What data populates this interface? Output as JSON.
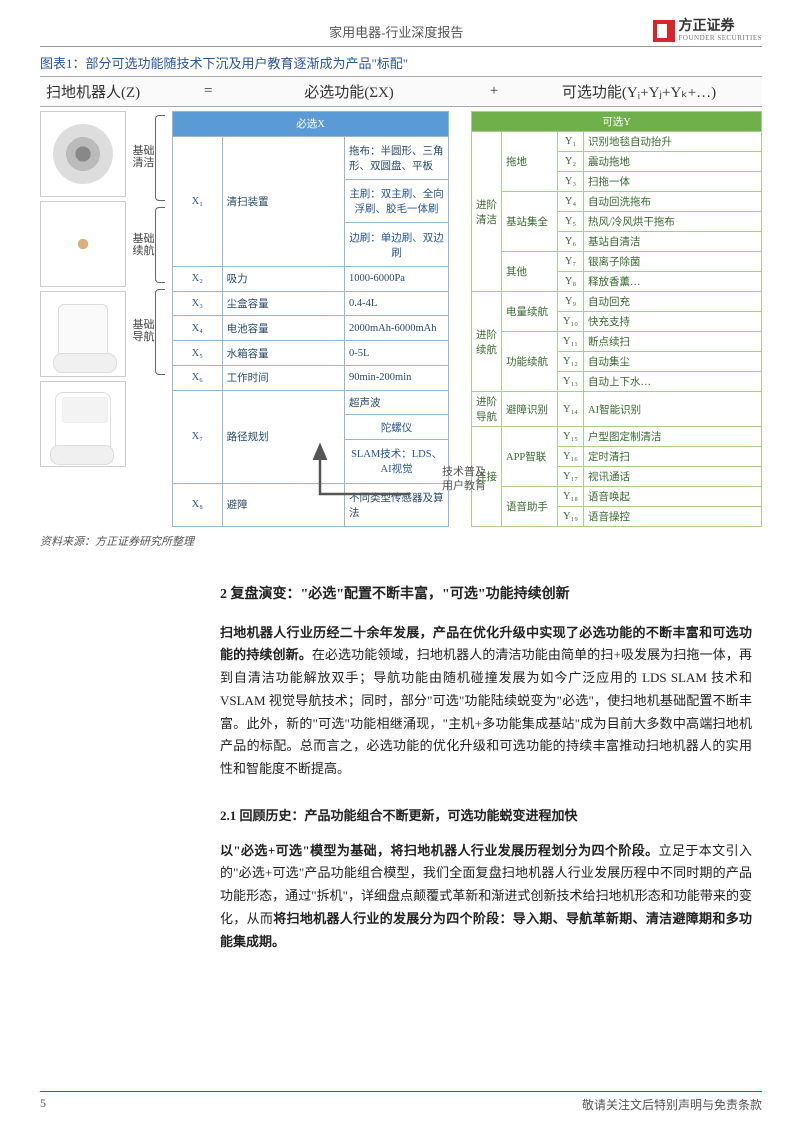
{
  "header": {
    "title": "家用电器-行业深度报告",
    "logo_text": "方正证券",
    "logo_sub": "FOUNDER SECURITIES",
    "logo_color": "#d8252c"
  },
  "figure": {
    "caption": "图表1：部分可选功能随技术下沉及用户教育逐渐成为产品\"标配\"",
    "formula": {
      "lhs": "扫地机器人(Z)",
      "eq": "=",
      "mid": "必选功能(ΣX)",
      "plus": "+",
      "rhs_prefix": "可选功能(Y",
      "rhs_full": "可选功能(Yᵢ+Yⱼ+Yₖ+…)"
    },
    "braces": [
      {
        "label": "基础\n清洁"
      },
      {
        "label": "基础\n续航"
      },
      {
        "label": "基础\n导航"
      }
    ],
    "blue": {
      "header": "必选X",
      "rows": [
        {
          "code": "X₁",
          "name": "清扫装置",
          "detail": "拖布：半圆形、三角形、双圆盘、平板"
        },
        {
          "code": "",
          "name": "",
          "detail": "主刷：双主刷、全向浮刷、胶毛一体刷"
        },
        {
          "code": "",
          "name": "",
          "detail": "边刷：单边刷、双边刷"
        },
        {
          "code": "X₂",
          "name": "吸力",
          "detail": "1000-6000Pa"
        },
        {
          "code": "X₃",
          "name": "尘盒容量",
          "detail": "0.4-4L"
        },
        {
          "code": "X₄",
          "name": "电池容量",
          "detail": "2000mAh-6000mAh"
        },
        {
          "code": "X₅",
          "name": "水箱容量",
          "detail": "0-5L"
        },
        {
          "code": "X₆",
          "name": "工作时间",
          "detail": "90min-200min"
        },
        {
          "code": "X₇",
          "name": "路径规划",
          "detail": "超声波"
        },
        {
          "code": "",
          "name": "",
          "detail": "陀螺仪"
        },
        {
          "code": "",
          "name": "",
          "detail": "SLAM技术：LDS、AI视觉"
        },
        {
          "code": "X₈",
          "name": "避障",
          "detail": "不同类型传感器及算法"
        }
      ]
    },
    "green": {
      "header": "可选Y",
      "rows": [
        {
          "g1": "进阶\n清洁",
          "g2": "拖地",
          "code": "Y₁",
          "detail": "识别地毯自动抬升"
        },
        {
          "g1": "",
          "g2": "",
          "code": "Y₂",
          "detail": "震动拖地"
        },
        {
          "g1": "",
          "g2": "",
          "code": "Y₃",
          "detail": "扫拖一体"
        },
        {
          "g1": "",
          "g2": "基站集全",
          "code": "Y₄",
          "detail": "自动回洗拖布"
        },
        {
          "g1": "",
          "g2": "",
          "code": "Y₅",
          "detail": "热风/冷风烘干拖布"
        },
        {
          "g1": "",
          "g2": "",
          "code": "Y₆",
          "detail": "基站自清洁"
        },
        {
          "g1": "",
          "g2": "其他",
          "code": "Y₇",
          "detail": "银离子除菌"
        },
        {
          "g1": "",
          "g2": "",
          "code": "Y₈",
          "detail": "释放香薰…"
        },
        {
          "g1": "进阶\n续航",
          "g2": "电量续航",
          "code": "Y₉",
          "detail": "自动回充"
        },
        {
          "g1": "",
          "g2": "",
          "code": "Y₁₀",
          "detail": "快充支持"
        },
        {
          "g1": "",
          "g2": "功能续航",
          "code": "Y₁₁",
          "detail": "断点续扫"
        },
        {
          "g1": "",
          "g2": "",
          "code": "Y₁₂",
          "detail": "自动集尘"
        },
        {
          "g1": "",
          "g2": "",
          "code": "Y₁₃",
          "detail": "自动上下水…"
        },
        {
          "g1": "进阶\n导航",
          "g2": "避障识别",
          "code": "Y₁₄",
          "detail": "AI智能识别"
        },
        {
          "g1": "连接",
          "g2": "APP智联",
          "code": "Y₁₅",
          "detail": "户型图定制清洁"
        },
        {
          "g1": "",
          "g2": "",
          "code": "Y₁₆",
          "detail": "定时清扫"
        },
        {
          "g1": "",
          "g2": "",
          "code": "Y₁₇",
          "detail": "视讯通话"
        },
        {
          "g1": "",
          "g2": "语音助手",
          "code": "Y₁₈",
          "detail": "语音唤起"
        },
        {
          "g1": "",
          "g2": "",
          "code": "Y₁₉",
          "detail": "语音操控"
        }
      ]
    },
    "arrow_label_l1": "技术普及",
    "arrow_label_l2": "用户教育",
    "source": "资料来源：方正证券研究所整理"
  },
  "body": {
    "h2": "2  复盘演变：\"必选\"配置不断丰富，\"可选\"功能持续创新",
    "p1_bold": "扫地机器人行业历经二十余年发展，产品在优化升级中实现了必选功能的不断丰富和可选功能的持续创新。",
    "p1_rest": "在必选功能领域，扫地机器人的清洁功能由简单的扫+吸发展为扫拖一体，再到自清洁功能解放双手；导航功能由随机碰撞发展为如今广泛应用的 LDS SLAM 技术和 VSLAM 视觉导航技术；同时，部分\"可选\"功能陆续蜕变为\"必选\"，使扫地机基础配置不断丰富。此外，新的\"可选\"功能相继涌现，\"主机+多功能集成基站\"成为目前大多数中高端扫地机产品的标配。总而言之，必选功能的优化升级和可选功能的持续丰富推动扫地机器人的实用性和智能度不断提高。",
    "h3": "2.1  回顾历史：产品功能组合不断更新，可选功能蜕变进程加快",
    "p2_bold": "以\"必选+可选\"模型为基础，将扫地机器人行业发展历程划分为四个阶段。",
    "p2_rest": "立足于本文引入的\"必选+可选\"产品功能组合模型，我们全面复盘扫地机器人行业发展历程中不同时期的产品功能形态，通过\"拆机\"，详细盘点颠覆式革新和渐进式创新技术给扫地机形态和功能带来的变化，从而",
    "p2_bold2": "将扫地机器人行业的发展分为四个阶段：导入期、导航革新期、清洁避障期和多功能集成期。"
  },
  "footer": {
    "page": "5",
    "disclaimer": "敬请关注文后特别声明与免责条款"
  },
  "colors": {
    "accent_red": "#d8252c",
    "blue_header": "#5a9bd5",
    "blue_border": "#95b6d6",
    "green_header": "#6fb04a",
    "green_border": "#a8cf8f",
    "caption_blue": "#2a5599"
  }
}
